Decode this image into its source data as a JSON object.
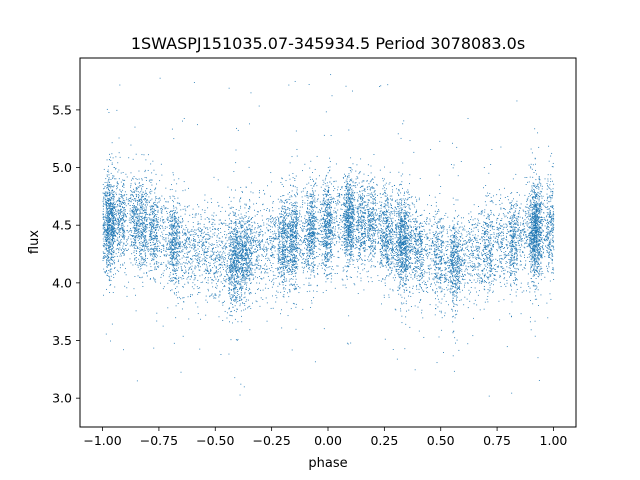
{
  "chart_data": {
    "type": "scatter",
    "title": "1SWASPJ151035.07-345934.5 Period 3078083.0s",
    "xlabel": "phase",
    "ylabel": "flux",
    "xlim": [
      -1.1,
      1.1
    ],
    "ylim": [
      2.75,
      5.95
    ],
    "grid": false,
    "legend": "none",
    "color": "#1f77b4",
    "x_ticks": [
      -1.0,
      -0.75,
      -0.5,
      -0.25,
      0.0,
      0.25,
      0.5,
      0.75,
      1.0
    ],
    "x_tick_labels": [
      "−1.00",
      "−0.75",
      "−0.50",
      "−0.25",
      "0.00",
      "0.25",
      "0.50",
      "0.75",
      "1.00"
    ],
    "y_ticks": [
      3.0,
      3.5,
      4.0,
      4.5,
      5.0,
      5.5
    ],
    "y_tick_labels": [
      "3.0",
      "3.5",
      "4.0",
      "4.5",
      "5.0",
      "5.5"
    ],
    "trend": {
      "phase": [
        -1.0,
        -0.9,
        -0.8,
        -0.7,
        -0.6,
        -0.5,
        -0.45,
        -0.4,
        -0.3,
        -0.2,
        -0.1,
        0.0,
        0.1,
        0.2,
        0.3,
        0.4,
        0.5,
        0.55,
        0.6,
        0.7,
        0.8,
        0.9,
        1.0
      ],
      "flux": [
        4.5,
        4.55,
        4.5,
        4.38,
        4.3,
        4.22,
        4.18,
        4.22,
        4.3,
        4.35,
        4.45,
        4.5,
        4.55,
        4.5,
        4.38,
        4.3,
        4.22,
        4.18,
        4.22,
        4.3,
        4.35,
        4.45,
        4.5
      ]
    },
    "scatter_sd": 0.2,
    "n_points": 14000
  }
}
